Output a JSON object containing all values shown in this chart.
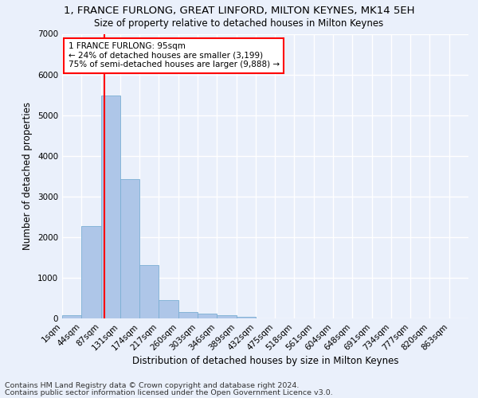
{
  "title": "1, FRANCE FURLONG, GREAT LINFORD, MILTON KEYNES, MK14 5EH",
  "subtitle": "Size of property relative to detached houses in Milton Keynes",
  "xlabel": "Distribution of detached houses by size in Milton Keynes",
  "ylabel": "Number of detached properties",
  "footnote1": "Contains HM Land Registry data © Crown copyright and database right 2024.",
  "footnote2": "Contains public sector information licensed under the Open Government Licence v3.0.",
  "bar_labels": [
    "1sqm",
    "44sqm",
    "87sqm",
    "131sqm",
    "174sqm",
    "217sqm",
    "260sqm",
    "303sqm",
    "346sqm",
    "389sqm",
    "432sqm",
    "475sqm",
    "518sqm",
    "561sqm",
    "604sqm",
    "648sqm",
    "691sqm",
    "734sqm",
    "777sqm",
    "820sqm",
    "863sqm"
  ],
  "bar_values": [
    80,
    2270,
    5480,
    3430,
    1310,
    460,
    160,
    110,
    70,
    40,
    0,
    0,
    0,
    0,
    0,
    0,
    0,
    0,
    0,
    0,
    0
  ],
  "bar_color": "#aec6e8",
  "bar_edge_color": "#7bafd4",
  "annotation_box_text": "1 FRANCE FURLONG: 95sqm\n← 24% of detached houses are smaller (3,199)\n75% of semi-detached houses are larger (9,888) →",
  "annotation_line_color": "red",
  "annotation_box_color": "white",
  "annotation_box_edge_color": "red",
  "property_sqm": 95,
  "ylim": [
    0,
    7000
  ],
  "xlim_min": 1,
  "bin_width": 43,
  "background_color": "#eaf0fb",
  "grid_color": "#ffffff",
  "title_fontsize": 9.5,
  "subtitle_fontsize": 8.5,
  "axis_label_fontsize": 8.5,
  "tick_fontsize": 7.5,
  "annotation_fontsize": 7.5,
  "footnote_fontsize": 6.8
}
